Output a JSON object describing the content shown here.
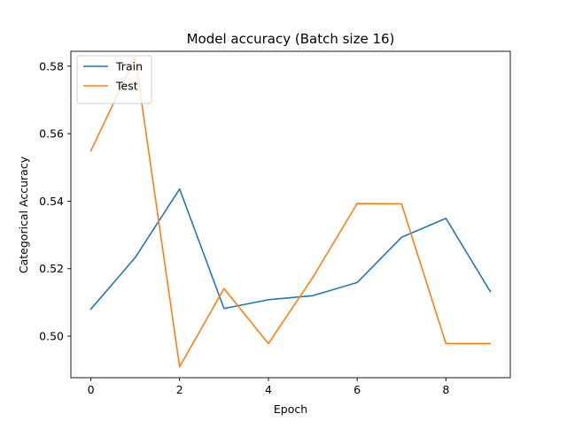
{
  "chart_data": {
    "type": "line",
    "title": "Model accuracy (Batch size 16)",
    "xlabel": "Epoch",
    "ylabel": "Categorical Accuracy",
    "x": [
      0,
      1,
      2,
      3,
      4,
      5,
      6,
      7,
      8,
      9
    ],
    "xlim": [
      -0.45,
      9.45
    ],
    "ylim": [
      0.4877,
      0.5844
    ],
    "xticks": [
      0,
      2,
      4,
      6,
      8
    ],
    "xtick_labels": [
      "0",
      "2",
      "4",
      "6",
      "8"
    ],
    "yticks": [
      0.5,
      0.52,
      0.54,
      0.56,
      0.58
    ],
    "ytick_labels": [
      "0.50",
      "0.52",
      "0.54",
      "0.56",
      "0.58"
    ],
    "grid": false,
    "legend_position": "top-left",
    "series": [
      {
        "name": "Train",
        "color": "#1f77b4",
        "values": [
          0.508,
          0.5233,
          0.5436,
          0.5082,
          0.5108,
          0.512,
          0.5159,
          0.5293,
          0.5349,
          0.5132
        ]
      },
      {
        "name": "Test",
        "color": "#ff7f0e",
        "values": [
          0.5549,
          0.5825,
          0.4909,
          0.5141,
          0.4978,
          0.5174,
          0.5393,
          0.5392,
          0.4978,
          0.4978
        ]
      }
    ]
  }
}
